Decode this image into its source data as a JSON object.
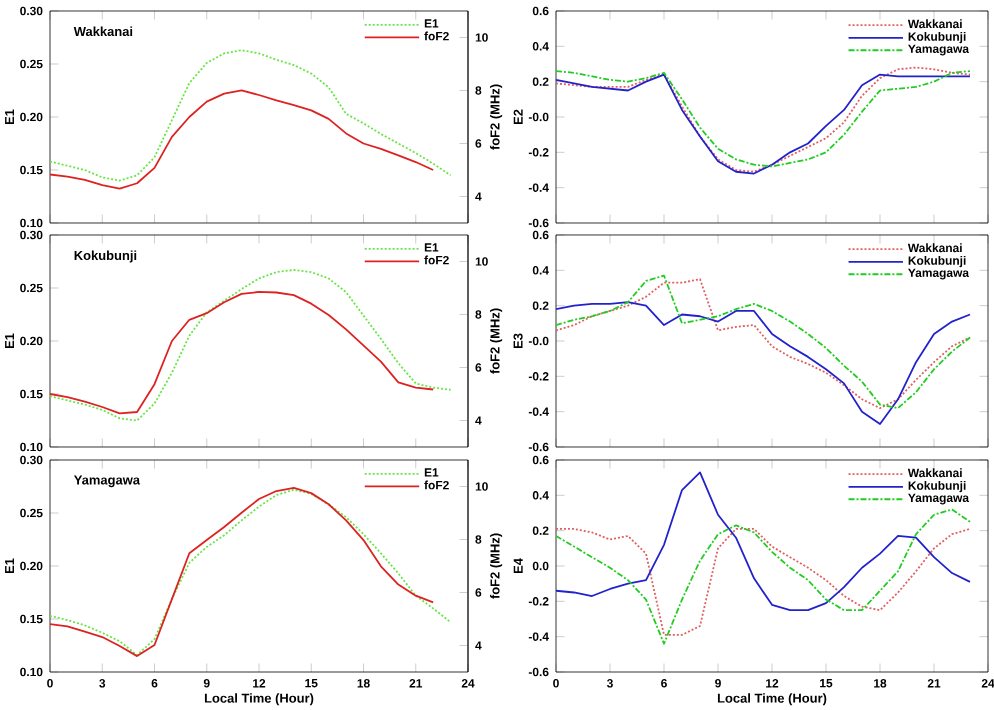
{
  "chart_data": [
    {
      "type": "line",
      "ylabel": "E1",
      "y2label": "foF2 (MHz)",
      "annotations": [
        "Wakkanai"
      ],
      "xlim": [
        0,
        24
      ],
      "xticks": [
        0,
        3,
        6,
        9,
        12,
        15,
        18,
        21,
        24
      ],
      "ylim": [
        0.1,
        0.3
      ],
      "yticks": [
        {
          "value": 0.1,
          "label": "0.10"
        },
        {
          "value": 0.15,
          "label": "0.15"
        },
        {
          "value": 0.2,
          "label": "0.20"
        },
        {
          "value": 0.25,
          "label": "0.25"
        },
        {
          "value": 0.3,
          "label": "0.30"
        }
      ],
      "y2lim": [
        3,
        11
      ],
      "y2ticks": [
        4,
        6,
        8,
        10
      ],
      "tick_labels": "y",
      "legend": "top right",
      "marker": "none",
      "series": [
        {
          "name": "E1",
          "color": "#66e644",
          "line_style": "dotted",
          "x": [
            0,
            1,
            2,
            3,
            4,
            5,
            6,
            7,
            8,
            9,
            10,
            11,
            12,
            13,
            14,
            15,
            16,
            17,
            18,
            19,
            20,
            21,
            22,
            23
          ],
          "values": [
            0.158,
            0.154,
            0.15,
            0.143,
            0.14,
            0.145,
            0.162,
            0.197,
            0.232,
            0.251,
            0.26,
            0.263,
            0.26,
            0.254,
            0.249,
            0.241,
            0.228,
            0.203,
            0.194,
            0.184,
            0.175,
            0.166,
            0.156,
            0.145
          ]
        },
        {
          "name": "foF2",
          "color": "#dd2222",
          "line_style": "solid",
          "axis": "y2",
          "x": [
            0,
            1,
            2,
            3,
            4,
            5,
            6,
            7,
            8,
            9,
            10,
            11,
            12,
            13,
            14,
            15,
            16,
            17,
            18,
            19,
            20,
            21,
            22
          ],
          "values": [
            4.83,
            4.75,
            4.63,
            4.43,
            4.3,
            4.5,
            5.08,
            6.25,
            7.0,
            7.58,
            7.88,
            8.0,
            7.83,
            7.63,
            7.45,
            7.25,
            6.93,
            6.38,
            6.0,
            5.8,
            5.55,
            5.3,
            5.0
          ]
        }
      ]
    },
    {
      "type": "line",
      "ylabel": "E2",
      "xlim": [
        0,
        24
      ],
      "xticks": [
        0,
        3,
        6,
        9,
        12,
        15,
        18,
        21,
        24
      ],
      "ylim": [
        -0.6,
        0.6
      ],
      "yticks": [
        -0.6,
        -0.4,
        -0.2,
        {
          "value": 0,
          "label": "-0.0"
        },
        0.2,
        0.4,
        0.6
      ],
      "tick_labels": "y",
      "legend": "top right",
      "marker": "none",
      "series": [
        {
          "name": "Wakkanai",
          "color": "#e06060",
          "line_style": "dotted",
          "x": [
            0,
            1,
            2,
            3,
            4,
            5,
            6,
            7,
            8,
            9,
            10,
            11,
            12,
            13,
            14,
            15,
            16,
            17,
            18,
            19,
            20,
            21,
            22,
            23
          ],
          "values": [
            0.19,
            0.18,
            0.17,
            0.17,
            0.17,
            0.21,
            0.24,
            0.06,
            -0.11,
            -0.24,
            -0.3,
            -0.31,
            -0.27,
            -0.22,
            -0.17,
            -0.12,
            -0.03,
            0.12,
            0.22,
            0.27,
            0.28,
            0.27,
            0.25,
            0.24
          ]
        },
        {
          "name": "Kokubunji",
          "color": "#2222cc",
          "line_style": "solid",
          "x": [
            0,
            1,
            2,
            3,
            4,
            5,
            6,
            7,
            8,
            9,
            10,
            11,
            12,
            13,
            14,
            15,
            16,
            17,
            18,
            19,
            20,
            21,
            22,
            23
          ],
          "values": [
            0.21,
            0.19,
            0.17,
            0.16,
            0.15,
            0.2,
            0.24,
            0.04,
            -0.11,
            -0.25,
            -0.31,
            -0.32,
            -0.27,
            -0.2,
            -0.15,
            -0.05,
            0.04,
            0.18,
            0.24,
            0.23,
            0.23,
            0.23,
            0.23,
            0.23
          ]
        },
        {
          "name": "Yamagawa",
          "color": "#22cc22",
          "line_style": "dashdot",
          "x": [
            0,
            1,
            2,
            3,
            4,
            5,
            6,
            7,
            8,
            9,
            10,
            11,
            12,
            13,
            14,
            15,
            16,
            17,
            18,
            19,
            20,
            21,
            22,
            23
          ],
          "values": [
            0.26,
            0.25,
            0.23,
            0.21,
            0.2,
            0.22,
            0.25,
            0.1,
            -0.06,
            -0.18,
            -0.24,
            -0.27,
            -0.28,
            -0.26,
            -0.24,
            -0.2,
            -0.1,
            0.03,
            0.15,
            0.16,
            0.17,
            0.2,
            0.25,
            0.26
          ]
        }
      ]
    },
    {
      "type": "line",
      "ylabel": "E1",
      "y2label": "foF2 (MHz)",
      "annotations": [
        "Kokubunji"
      ],
      "xlim": [
        0,
        24
      ],
      "xticks": [
        0,
        3,
        6,
        9,
        12,
        15,
        18,
        21,
        24
      ],
      "ylim": [
        0.1,
        0.3
      ],
      "yticks": [
        {
          "value": 0.1,
          "label": "0.10"
        },
        {
          "value": 0.15,
          "label": "0.15"
        },
        {
          "value": 0.2,
          "label": "0.20"
        },
        {
          "value": 0.25,
          "label": "0.25"
        },
        {
          "value": 0.3,
          "label": "0.30"
        }
      ],
      "y2lim": [
        3,
        11
      ],
      "y2ticks": [
        4,
        6,
        8,
        10
      ],
      "tick_labels": "y",
      "legend": "top right",
      "marker": "none",
      "series": [
        {
          "name": "E1",
          "color": "#66e644",
          "line_style": "dotted",
          "x": [
            0,
            1,
            2,
            3,
            4,
            5,
            6,
            7,
            8,
            9,
            10,
            11,
            12,
            13,
            14,
            15,
            16,
            17,
            18,
            19,
            20,
            21,
            22,
            23
          ],
          "values": [
            0.148,
            0.144,
            0.14,
            0.135,
            0.127,
            0.125,
            0.141,
            0.17,
            0.205,
            0.227,
            0.238,
            0.249,
            0.259,
            0.265,
            0.267,
            0.265,
            0.259,
            0.246,
            0.224,
            0.202,
            0.179,
            0.16,
            0.156,
            0.154
          ]
        },
        {
          "name": "foF2",
          "color": "#dd2222",
          "line_style": "solid",
          "axis": "y2",
          "x": [
            0,
            1,
            2,
            3,
            4,
            5,
            6,
            7,
            8,
            9,
            10,
            11,
            12,
            13,
            14,
            15,
            16,
            17,
            18,
            19,
            20,
            21,
            22
          ],
          "values": [
            5.0,
            4.88,
            4.71,
            4.51,
            4.27,
            4.32,
            5.37,
            7.0,
            7.8,
            8.05,
            8.46,
            8.78,
            8.85,
            8.83,
            8.73,
            8.41,
            7.98,
            7.44,
            6.83,
            6.22,
            5.44,
            5.24,
            5.17
          ]
        }
      ]
    },
    {
      "type": "line",
      "ylabel": "E3",
      "xlim": [
        0,
        24
      ],
      "xticks": [
        0,
        3,
        6,
        9,
        12,
        15,
        18,
        21,
        24
      ],
      "ylim": [
        -0.6,
        0.6
      ],
      "yticks": [
        -0.6,
        -0.4,
        -0.2,
        {
          "value": 0,
          "label": "-0.0"
        },
        0.2,
        0.4,
        0.6
      ],
      "tick_labels": "y",
      "legend": "top right",
      "marker": "none",
      "series": [
        {
          "name": "Wakkanai",
          "color": "#e06060",
          "line_style": "dotted",
          "x": [
            0,
            1,
            2,
            3,
            4,
            5,
            6,
            7,
            8,
            9,
            10,
            11,
            12,
            13,
            14,
            15,
            16,
            17,
            18,
            19,
            20,
            21,
            22,
            23
          ],
          "values": [
            0.06,
            0.09,
            0.14,
            0.17,
            0.2,
            0.25,
            0.33,
            0.33,
            0.35,
            0.06,
            0.08,
            0.09,
            -0.03,
            -0.09,
            -0.13,
            -0.18,
            -0.25,
            -0.33,
            -0.38,
            -0.33,
            -0.22,
            -0.12,
            -0.03,
            0.02
          ]
        },
        {
          "name": "Kokubunji",
          "color": "#2222cc",
          "line_style": "solid",
          "x": [
            0,
            1,
            2,
            3,
            4,
            5,
            6,
            7,
            8,
            9,
            10,
            11,
            12,
            13,
            14,
            15,
            16,
            17,
            18,
            19,
            20,
            21,
            22,
            23
          ],
          "values": [
            0.18,
            0.2,
            0.21,
            0.21,
            0.22,
            0.2,
            0.09,
            0.15,
            0.14,
            0.11,
            0.17,
            0.17,
            0.04,
            -0.03,
            -0.09,
            -0.16,
            -0.24,
            -0.4,
            -0.47,
            -0.33,
            -0.12,
            0.04,
            0.11,
            0.15
          ]
        },
        {
          "name": "Yamagawa",
          "color": "#22cc22",
          "line_style": "dashdot",
          "x": [
            0,
            1,
            2,
            3,
            4,
            5,
            6,
            7,
            8,
            9,
            10,
            11,
            12,
            13,
            14,
            15,
            16,
            17,
            18,
            19,
            20,
            21,
            22,
            23
          ],
          "values": [
            0.09,
            0.12,
            0.14,
            0.17,
            0.22,
            0.34,
            0.37,
            0.1,
            0.12,
            0.14,
            0.18,
            0.21,
            0.17,
            0.11,
            0.04,
            -0.04,
            -0.14,
            -0.23,
            -0.36,
            -0.38,
            -0.29,
            -0.16,
            -0.06,
            0.02
          ]
        }
      ]
    },
    {
      "type": "line",
      "ylabel": "E1",
      "y2label": "foF2 (MHz)",
      "xlabel": "Local Time (Hour)",
      "annotations": [
        "Yamagawa"
      ],
      "xlim": [
        0,
        24
      ],
      "xticks": [
        0,
        3,
        6,
        9,
        12,
        15,
        18,
        21,
        24
      ],
      "ylim": [
        0.1,
        0.3
      ],
      "yticks": [
        {
          "value": 0.1,
          "label": "0.10"
        },
        {
          "value": 0.15,
          "label": "0.15"
        },
        {
          "value": 0.2,
          "label": "0.20"
        },
        {
          "value": 0.25,
          "label": "0.25"
        },
        {
          "value": 0.3,
          "label": "0.30"
        }
      ],
      "y2lim": [
        3,
        11
      ],
      "y2ticks": [
        4,
        6,
        8,
        10
      ],
      "legend": "top right",
      "marker": "none",
      "series": [
        {
          "name": "E1",
          "color": "#66e644",
          "line_style": "dotted",
          "x": [
            0,
            1,
            2,
            3,
            4,
            5,
            6,
            7,
            8,
            9,
            10,
            11,
            12,
            13,
            14,
            15,
            16,
            17,
            18,
            19,
            20,
            21,
            22,
            23
          ],
          "values": [
            0.153,
            0.149,
            0.144,
            0.137,
            0.129,
            0.116,
            0.131,
            0.169,
            0.203,
            0.218,
            0.229,
            0.243,
            0.256,
            0.267,
            0.272,
            0.268,
            0.258,
            0.246,
            0.23,
            0.212,
            0.193,
            0.172,
            0.16,
            0.147
          ]
        },
        {
          "name": "foF2",
          "color": "#dd2222",
          "line_style": "solid",
          "axis": "y2",
          "x": [
            0,
            1,
            2,
            3,
            4,
            5,
            6,
            7,
            8,
            9,
            10,
            11,
            12,
            13,
            14,
            15,
            16,
            17,
            18,
            19,
            20,
            21,
            22
          ],
          "values": [
            4.81,
            4.72,
            4.52,
            4.32,
            3.98,
            3.6,
            4.02,
            5.75,
            7.48,
            7.98,
            8.47,
            9.01,
            9.53,
            9.83,
            9.95,
            9.75,
            9.33,
            8.72,
            7.98,
            6.99,
            6.3,
            5.88,
            5.63
          ]
        }
      ]
    },
    {
      "type": "line",
      "ylabel": "E4",
      "xlabel": "Local Time (Hour)",
      "xlim": [
        0,
        24
      ],
      "xticks": [
        0,
        3,
        6,
        9,
        12,
        15,
        18,
        21,
        24
      ],
      "ylim": [
        -0.6,
        0.6
      ],
      "yticks": [
        -0.6,
        -0.4,
        -0.2,
        {
          "value": 0,
          "label": "0.0"
        },
        0.2,
        0.4,
        0.6
      ],
      "legend": "top right",
      "marker": "none",
      "series": [
        {
          "name": "Wakkanai",
          "color": "#e06060",
          "line_style": "dotted",
          "x": [
            0,
            1,
            2,
            3,
            4,
            5,
            6,
            7,
            8,
            9,
            10,
            11,
            12,
            13,
            14,
            15,
            16,
            17,
            18,
            19,
            20,
            21,
            22,
            23
          ],
          "values": [
            0.21,
            0.21,
            0.19,
            0.15,
            0.17,
            0.07,
            -0.39,
            -0.39,
            -0.34,
            0.1,
            0.21,
            0.21,
            0.11,
            0.05,
            -0.01,
            -0.08,
            -0.17,
            -0.23,
            -0.25,
            -0.15,
            -0.03,
            0.1,
            0.18,
            0.21
          ]
        },
        {
          "name": "Kokubunji",
          "color": "#2222cc",
          "line_style": "solid",
          "x": [
            0,
            1,
            2,
            3,
            4,
            5,
            6,
            7,
            8,
            9,
            10,
            11,
            12,
            13,
            14,
            15,
            16,
            17,
            18,
            19,
            20,
            21,
            22,
            23
          ],
          "values": [
            -0.14,
            -0.15,
            -0.17,
            -0.13,
            -0.1,
            -0.08,
            0.12,
            0.43,
            0.53,
            0.29,
            0.16,
            -0.07,
            -0.22,
            -0.25,
            -0.25,
            -0.21,
            -0.12,
            -0.01,
            0.07,
            0.17,
            0.16,
            0.05,
            -0.04,
            -0.09
          ]
        },
        {
          "name": "Yamagawa",
          "color": "#22cc22",
          "line_style": "dashdot",
          "x": [
            0,
            1,
            2,
            3,
            4,
            5,
            6,
            7,
            8,
            9,
            10,
            11,
            12,
            13,
            14,
            15,
            16,
            17,
            18,
            19,
            20,
            21,
            22,
            23
          ],
          "values": [
            0.17,
            0.11,
            0.05,
            -0.01,
            -0.08,
            -0.19,
            -0.44,
            -0.19,
            0.03,
            0.18,
            0.23,
            0.19,
            0.08,
            -0.01,
            -0.08,
            -0.19,
            -0.25,
            -0.25,
            -0.14,
            -0.03,
            0.18,
            0.29,
            0.32,
            0.25
          ]
        }
      ]
    }
  ]
}
